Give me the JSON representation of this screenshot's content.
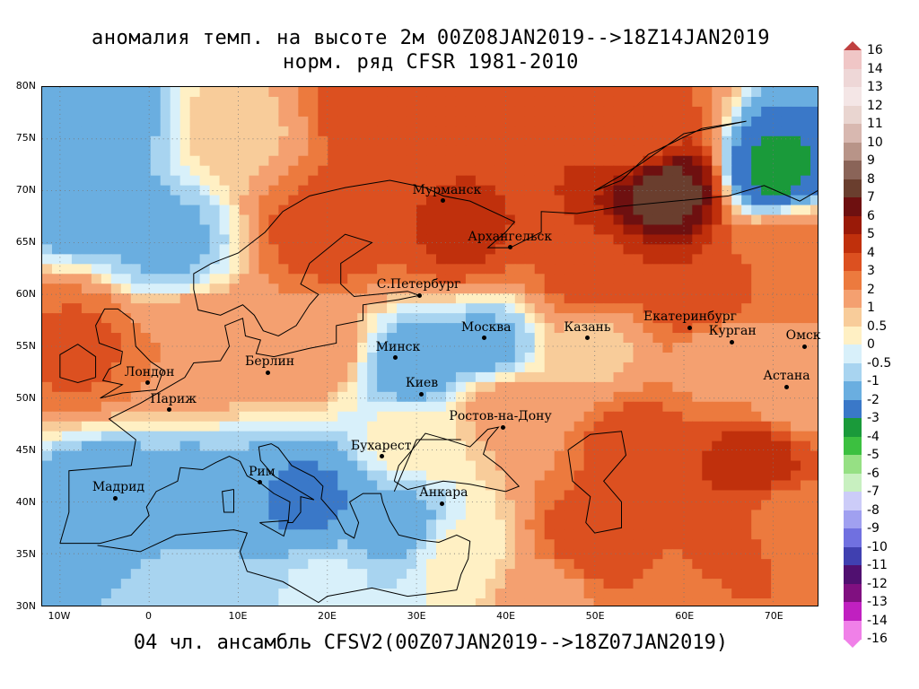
{
  "title": {
    "line1": "аномалия темп. на высоте 2м 00Z08JAN2019-->18Z14JAN2019",
    "line2": "норм. ряд CFSR 1981-2010"
  },
  "footer": "04 чл. ансамбль CFSV2(00Z07JAN2019-->18Z07JAN2019)",
  "lat_labels": [
    "80N",
    "75N",
    "70N",
    "65N",
    "60N",
    "55N",
    "50N",
    "45N",
    "40N",
    "35N",
    "30N"
  ],
  "lon_labels": [
    "10W",
    "0",
    "10E",
    "20E",
    "30E",
    "40E",
    "50E",
    "60E",
    "70E"
  ],
  "cities": [
    {
      "name": "Мурманск",
      "lon": 33,
      "lat": 69
    },
    {
      "name": "Архангельск",
      "lon": 40.5,
      "lat": 64.5
    },
    {
      "name": "С.Петербург",
      "lon": 30.3,
      "lat": 59.9
    },
    {
      "name": "Москва",
      "lon": 37.6,
      "lat": 55.8
    },
    {
      "name": "Казань",
      "lon": 49.1,
      "lat": 55.8
    },
    {
      "name": "Екатеринбург",
      "lon": 60.6,
      "lat": 56.8
    },
    {
      "name": "Курган",
      "lon": 65.3,
      "lat": 55.4
    },
    {
      "name": "Омск",
      "lon": 73.4,
      "lat": 55.0
    },
    {
      "name": "Астана",
      "lon": 71.4,
      "lat": 51.1
    },
    {
      "name": "Минск",
      "lon": 27.6,
      "lat": 53.9
    },
    {
      "name": "Киев",
      "lon": 30.5,
      "lat": 50.4
    },
    {
      "name": "Берлин",
      "lon": 13.4,
      "lat": 52.5
    },
    {
      "name": "Лондон",
      "lon": -0.1,
      "lat": 51.5
    },
    {
      "name": "Париж",
      "lon": 2.35,
      "lat": 48.9
    },
    {
      "name": "Ростов-на-Дону",
      "lon": 39.7,
      "lat": 47.2
    },
    {
      "name": "Бухарест",
      "lon": 26.1,
      "lat": 44.4
    },
    {
      "name": "Рим",
      "lon": 12.5,
      "lat": 41.9
    },
    {
      "name": "Мадрид",
      "lon": -3.7,
      "lat": 40.4
    },
    {
      "name": "Анкара",
      "lon": 32.9,
      "lat": 39.9
    }
  ],
  "scale": {
    "labels": [
      "16",
      "14",
      "13",
      "12",
      "11",
      "10",
      "9",
      "8",
      "7",
      "6",
      "5",
      "4",
      "3",
      "2",
      "1",
      "0.5",
      "0",
      "-0.5",
      "-1",
      "-2",
      "-3",
      "-4",
      "-5",
      "-6",
      "-7",
      "-8",
      "-9",
      "-10",
      "-11",
      "-12",
      "-13",
      "-14",
      "-16"
    ],
    "colors": [
      "#f0c6c6",
      "#eed7d7",
      "#f4e6e6",
      "#e9d5d0",
      "#d8b8b0",
      "#b89488",
      "#8a6458",
      "#6a3e2e",
      "#6e1010",
      "#9a1a08",
      "#c0300c",
      "#dc5020",
      "#ec7a3e",
      "#f4a070",
      "#f8cc9a",
      "#fff0c4",
      "#d8f0fa",
      "#a8d4f0",
      "#6aaee0",
      "#3a78c8",
      "#1a9a3a",
      "#3cc040",
      "#96e084",
      "#c8f0c0",
      "#ccccf8",
      "#a0a0f0",
      "#7070e0",
      "#4040b0",
      "#501070",
      "#801080",
      "#c020c0",
      "#f080e8"
    ],
    "top_color": "#c04040",
    "bottom_color": "#f080e8"
  },
  "map": {
    "lon_range": [
      -12,
      75
    ],
    "lat_range": [
      30,
      80
    ],
    "fields": [
      {
        "lon": -5,
        "lat": 78,
        "value": -1.5
      },
      {
        "lon": 10,
        "lat": 76,
        "value": 0.8
      },
      {
        "lon": 25,
        "lat": 78,
        "value": 3.5
      },
      {
        "lon": 55,
        "lat": 75,
        "value": 3.2
      },
      {
        "lon": 58,
        "lat": 70,
        "value": 7.5
      },
      {
        "lon": 70,
        "lat": 72,
        "value": -3.2
      },
      {
        "lon": -8,
        "lat": 70,
        "value": -1.8
      },
      {
        "lon": 2,
        "lat": 65,
        "value": -1.2
      },
      {
        "lon": 20,
        "lat": 66,
        "value": 3.6
      },
      {
        "lon": 35,
        "lat": 66,
        "value": 4.2
      },
      {
        "lon": 50,
        "lat": 62,
        "value": 3.8
      },
      {
        "lon": 62,
        "lat": 60,
        "value": 4.0
      },
      {
        "lon": 72,
        "lat": 64,
        "value": 2.6
      },
      {
        "lon": -8,
        "lat": 55,
        "value": 3.2
      },
      {
        "lon": 5,
        "lat": 55,
        "value": 2.0
      },
      {
        "lon": 18,
        "lat": 55,
        "value": 1.6
      },
      {
        "lon": 30,
        "lat": 53,
        "value": -1.5
      },
      {
        "lon": 38,
        "lat": 55,
        "value": -1.2
      },
      {
        "lon": 50,
        "lat": 55,
        "value": 0.8
      },
      {
        "lon": 65,
        "lat": 54,
        "value": 1.0
      },
      {
        "lon": 72,
        "lat": 50,
        "value": 1.5
      },
      {
        "lon": 40,
        "lat": 49,
        "value": 1.4
      },
      {
        "lon": 30,
        "lat": 46,
        "value": 0.3
      },
      {
        "lon": 55,
        "lat": 45,
        "value": 3.6
      },
      {
        "lon": 68,
        "lat": 44,
        "value": 4.6
      },
      {
        "lon": -5,
        "lat": 40,
        "value": -1.6
      },
      {
        "lon": 5,
        "lat": 40,
        "value": -1.4
      },
      {
        "lon": 18,
        "lat": 40,
        "value": -2.2
      },
      {
        "lon": 28,
        "lat": 38,
        "value": -1.3
      },
      {
        "lon": 35,
        "lat": 35,
        "value": 0.2
      },
      {
        "lon": 50,
        "lat": 36,
        "value": 3.8
      },
      {
        "lon": 65,
        "lat": 35,
        "value": 3.2
      },
      {
        "lon": 72,
        "lat": 38,
        "value": 2.4
      },
      {
        "lon": 5,
        "lat": 32,
        "value": -0.8
      },
      {
        "lon": 20,
        "lat": 32,
        "value": -0.4
      },
      {
        "lon": 45,
        "lat": 31,
        "value": 1.6
      },
      {
        "lon": 60,
        "lat": 31,
        "value": 2.8
      }
    ]
  }
}
